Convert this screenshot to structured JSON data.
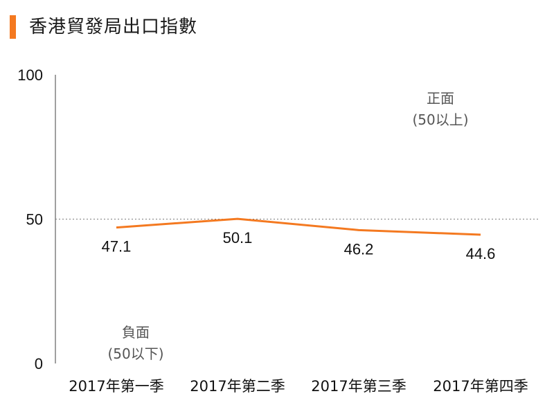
{
  "header": {
    "title": "香港貿發局出口指數"
  },
  "colors": {
    "accent": "#f47920",
    "line": "#f47920",
    "axis": "#808080",
    "reference": "#7a7a7a"
  },
  "annotations": {
    "positive": [
      "正面",
      "(50以上)"
    ],
    "negative": [
      "負面",
      "(50以下)"
    ]
  },
  "chart_data": {
    "type": "line",
    "categories": [
      "2017年第一季",
      "2017年第二季",
      "2017年第三季",
      "2017年第四季"
    ],
    "series": [
      {
        "values": [
          47.1,
          50.1,
          46.2,
          44.6
        ]
      }
    ],
    "value_labels": [
      "47.1",
      "50.1",
      "46.2",
      "44.6"
    ],
    "yticks": [
      "0",
      "50",
      "100"
    ],
    "ylim": [
      0,
      100
    ],
    "reference_line": 50,
    "grid": false,
    "legend": "none"
  }
}
